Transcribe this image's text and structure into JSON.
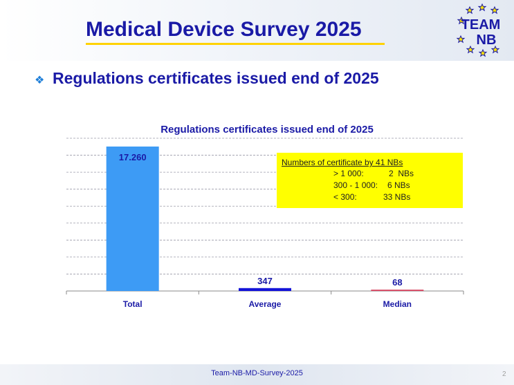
{
  "header": {
    "title": "Medical Device Survey 2025",
    "logo_text_top": "TEAM",
    "logo_text_bottom": "NB"
  },
  "section": {
    "bullet_icon": "diamond-bullet-icon",
    "heading": "Regulations certificates issued end of 2025"
  },
  "chart_data": {
    "type": "bar",
    "title": "Regulations certificates issued end of 2025",
    "xlabel": "",
    "ylabel": "",
    "categories": [
      "Total",
      "Average",
      "Median"
    ],
    "values": [
      17260,
      347,
      68
    ],
    "value_labels": [
      "17.260",
      "347",
      "68"
    ],
    "bar_colors": [
      "#3d9bf5",
      "#1414d8",
      "#d8506a"
    ],
    "grid": true,
    "ylim": [
      0,
      17260
    ]
  },
  "note": {
    "heading": "Numbers of certificate by 41 NBs",
    "lines": [
      {
        "range": "> 1 000:",
        "count": "2  NBs"
      },
      {
        "range": "300 - 1 000:",
        "count": "6 NBs"
      },
      {
        "range": "< 300:",
        "count": "33 NBs"
      }
    ]
  },
  "footer": {
    "text": "Team-NB-MD-Survey-2025",
    "page": "2"
  },
  "colors": {
    "title": "#1a1aa6",
    "accent_underline": "#ffd200",
    "note_bg": "#ffff00"
  }
}
